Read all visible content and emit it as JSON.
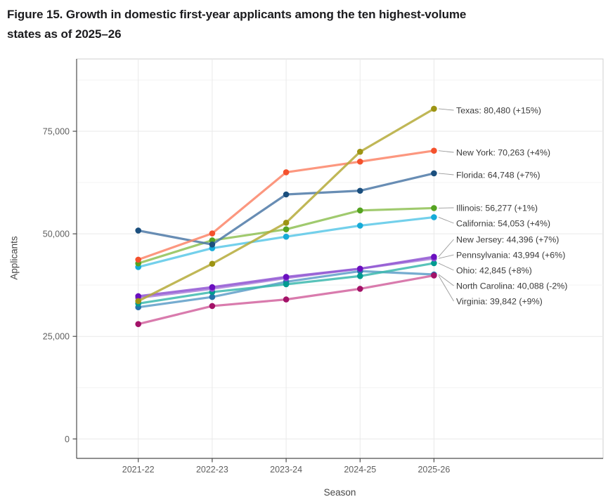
{
  "figure": {
    "title_line1": "Figure 15. Growth in domestic first-year applicants among the ten highest-volume",
    "title_line2": "states as of 2025–26"
  },
  "chart_data": {
    "type": "line",
    "title": "Figure 15. Growth in domestic first-year applicants among the ten highest-volume states as of 2025–26",
    "xlabel": "Season",
    "ylabel": "Applicants",
    "categories": [
      "2021-22",
      "2022-23",
      "2023-24",
      "2024-25",
      "2025-26"
    ],
    "y_ticks": [
      {
        "value": 0,
        "label": "0"
      },
      {
        "value": 25000,
        "label": "25,000"
      },
      {
        "value": 50000,
        "label": "50,000"
      },
      {
        "value": 75000,
        "label": "75,000"
      }
    ],
    "y_minor_ticks": [
      12500,
      37500,
      62500,
      87500
    ],
    "ylim": [
      0,
      92000
    ],
    "grid": "major+minor",
    "legend_position": "right-labels",
    "series": [
      {
        "name": "Texas",
        "values": [
          33600,
          42700,
          52700,
          70000,
          80480
        ],
        "final_value": "80,480",
        "pct_change": "+15%",
        "label": "Texas: 80,480 (+15%)",
        "line_color": "#b5aa38",
        "marker_color": "#9d9413",
        "label_y": 157
      },
      {
        "name": "New York",
        "values": [
          43700,
          50100,
          65000,
          67600,
          70263
        ],
        "final_value": "70,263",
        "pct_change": "+4%",
        "label": "New York: 70,263 (+4%)",
        "line_color": "#fb8569",
        "marker_color": "#f4512c",
        "label_y": 217
      },
      {
        "name": "Florida",
        "values": [
          50800,
          47400,
          59600,
          60500,
          64748
        ],
        "final_value": "64,748",
        "pct_change": "+7%",
        "label": "Florida: 64,748 (+7%)",
        "line_color": "#4d79a7",
        "marker_color": "#1b4f7e",
        "label_y": 249
      },
      {
        "name": "Illinois",
        "values": [
          42800,
          48400,
          51100,
          55700,
          56277
        ],
        "final_value": "56,277",
        "pct_change": "+1%",
        "label": "Illinois: 56,277 (+1%)",
        "line_color": "#8fc155",
        "marker_color": "#55a321",
        "label_y": 296
      },
      {
        "name": "California",
        "values": [
          41900,
          46500,
          49300,
          52000,
          54053
        ],
        "final_value": "54,053",
        "pct_change": "+4%",
        "label": "California: 54,053 (+4%)",
        "line_color": "#5ac8e8",
        "marker_color": "#16abd8",
        "label_y": 318
      },
      {
        "name": "New Jersey",
        "values": [
          34800,
          37000,
          39500,
          41500,
          44396
        ],
        "final_value": "44,396",
        "pct_change": "+7%",
        "label": "New Jersey: 44,396 (+7%)",
        "line_color": "#9257d4",
        "marker_color": "#6a0fbf",
        "label_y": 341
      },
      {
        "name": "Pennsylvania",
        "values": [
          34400,
          36600,
          39200,
          41500,
          43994
        ],
        "final_value": "43,994",
        "pct_change": "+6%",
        "label": "Pennsylvania: 43,994 (+6%)",
        "line_color": "#a97fd9",
        "marker_color": "#8b4fd0",
        "label_y": 363
      },
      {
        "name": "Ohio",
        "values": [
          33000,
          35800,
          37700,
          39700,
          42845
        ],
        "final_value": "42,845",
        "pct_change": "+8%",
        "label": "Ohio: 42,845 (+8%)",
        "line_color": "#3cb8ae",
        "marker_color": "#009b90",
        "label_y": 385
      },
      {
        "name": "North Carolina",
        "values": [
          32100,
          34600,
          38300,
          40900,
          40088
        ],
        "final_value": "40,088",
        "pct_change": "-2%",
        "label": "North Carolina: 40,088 (-2%)",
        "line_color": "#5e9dc8",
        "marker_color": "#2472ab",
        "label_y": 407
      },
      {
        "name": "Virginia",
        "values": [
          28000,
          32400,
          34000,
          36600,
          39842
        ],
        "final_value": "39,842",
        "pct_change": "+9%",
        "label": "Virginia: 39,842 (+9%)",
        "line_color": "#d2649f",
        "marker_color": "#a31268",
        "label_y": 429
      }
    ],
    "draw_order": [
      "North Carolina",
      "Ohio",
      "Pennsylvania",
      "New Jersey",
      "Virginia",
      "California",
      "Illinois",
      "Florida",
      "New York",
      "Texas"
    ]
  }
}
